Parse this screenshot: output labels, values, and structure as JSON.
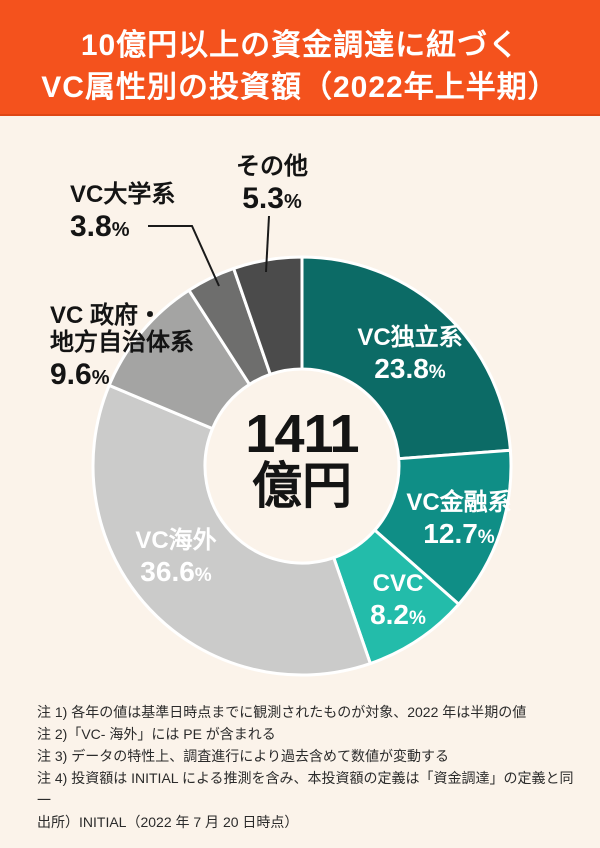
{
  "header": {
    "title_line1": "10億円以上の資金調達に紐づく",
    "title_line2": "VC属性別の投資額（2022年上半期）"
  },
  "center": {
    "value": "1411",
    "unit": "億円"
  },
  "chart_data": {
    "type": "pie",
    "subtype": "donut",
    "title": "10億円以上の資金調達に紐づくVC属性別の投資額（2022年上半期）",
    "total_label": "1411億円",
    "start_angle_deg": 0,
    "direction": "clockwise",
    "percent_sign": "%",
    "segments": [
      {
        "name": "VC独立系",
        "pct": 23.8,
        "color": "#0C6B66",
        "label_position": "inside"
      },
      {
        "name": "VC金融系",
        "pct": 12.7,
        "color": "#0F8E86",
        "label_position": "inside"
      },
      {
        "name": "CVC",
        "pct": 8.2,
        "color": "#23BCAA",
        "label_position": "inside"
      },
      {
        "name": "VC海外",
        "pct": 36.6,
        "color": "#CBCBCA",
        "label_position": "inside"
      },
      {
        "name": "VC政府・地方自治体系",
        "pct": 9.6,
        "color": "#A4A4A3",
        "label_position": "outside"
      },
      {
        "name": "VC大学系",
        "pct": 3.8,
        "color": "#6E6E6D",
        "label_position": "outside"
      },
      {
        "name": "その他",
        "pct": 5.3,
        "color": "#4B4B4B",
        "label_position": "outside"
      }
    ]
  },
  "labels": {
    "gov_line1": "VC 政府・",
    "gov_line2": "地方自治体系"
  },
  "notes": [
    "注 1) 各年の値は基準日時点までに観測されたものが対象、2022 年は半期の値",
    "注 2)「VC- 海外」には PE が含まれる",
    "注 3) データの特性上、調査進行により過去含めて数値が変動する",
    "注 4) 投資額は INITIAL による推測を含み、本投資額の定義は「資金調達」の定義と同一",
    "出所）INITIAL（2022 年 7 月 20 日時点）"
  ],
  "colors": {
    "background": "#FBF3EA",
    "banner": "#F4521D",
    "banner_text": "#FFFFFF",
    "text": "#141414",
    "leader_line": "#1A1A1A",
    "segment_stroke": "#FFFFFF"
  }
}
